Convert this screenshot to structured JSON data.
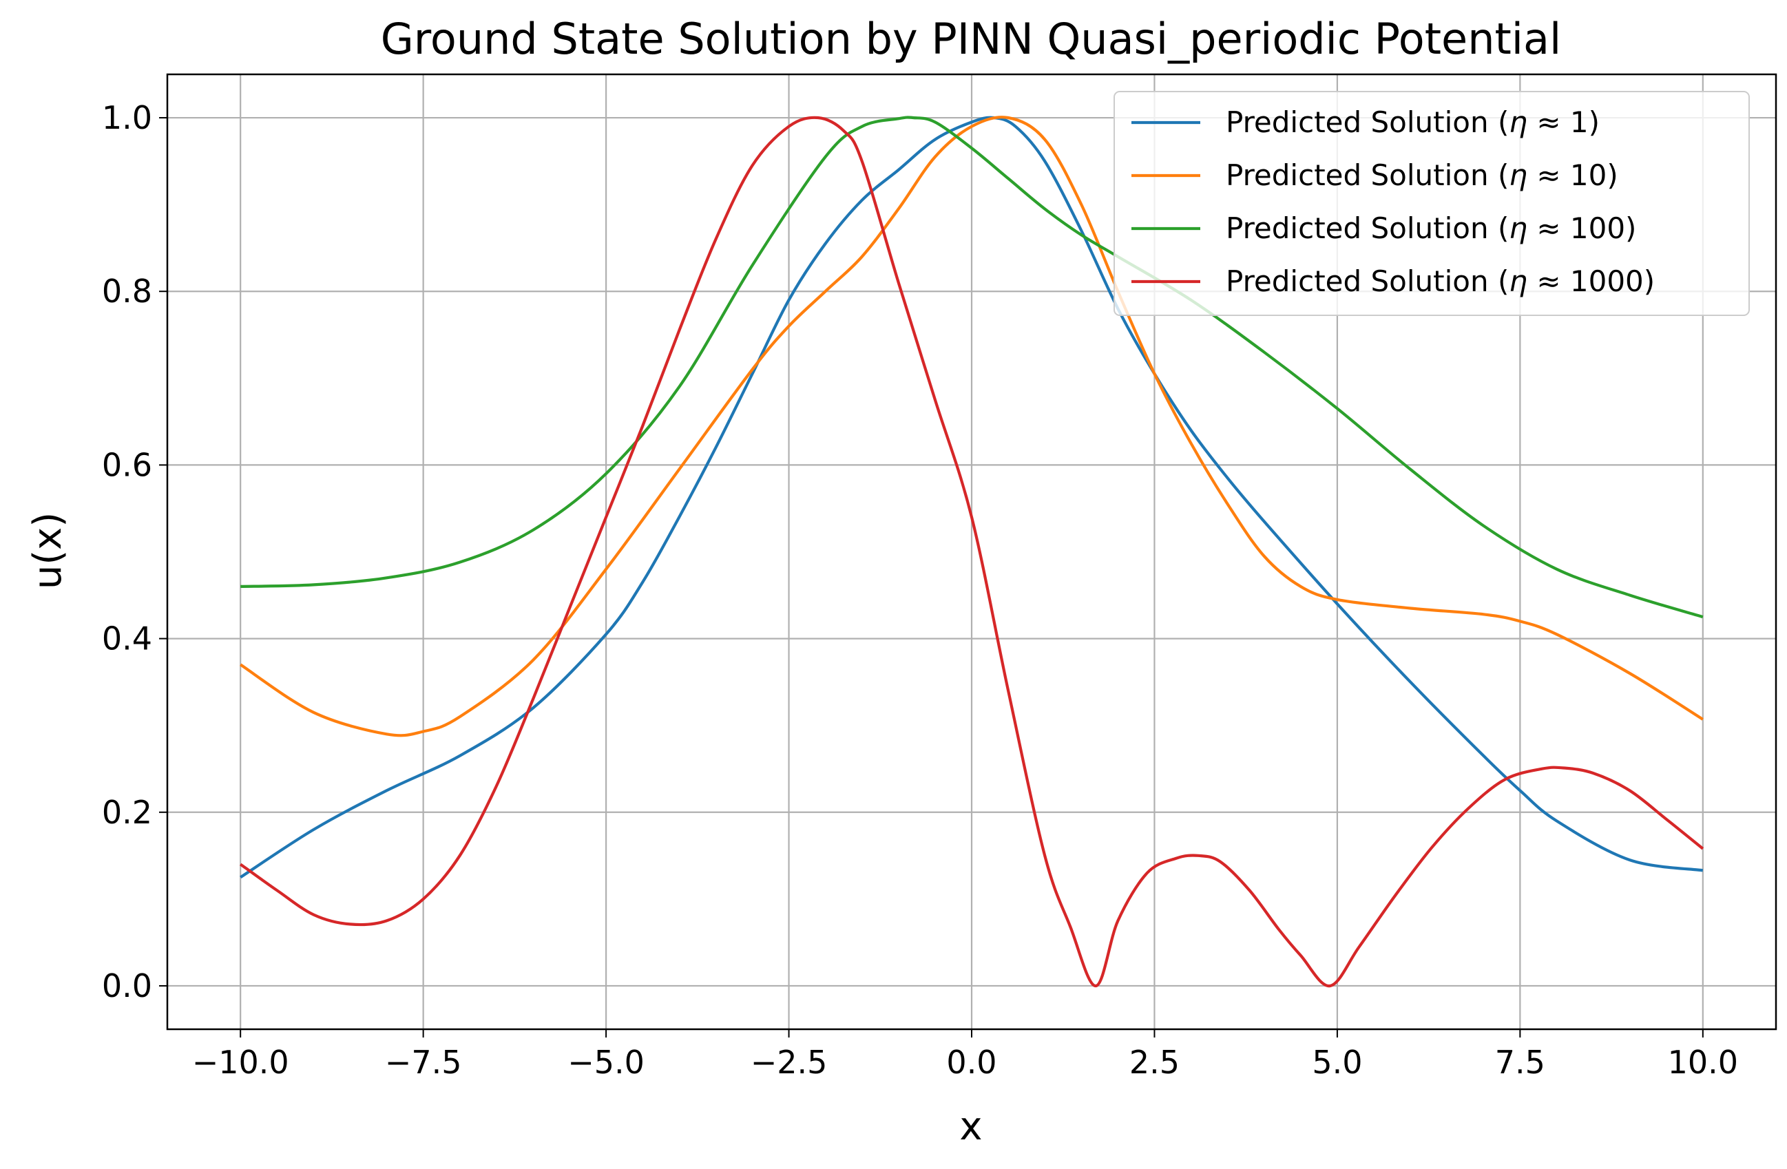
{
  "chart_data": {
    "type": "line",
    "title": "Ground State Solution by PINN Quasi_periodic Potential",
    "xlabel": "x",
    "ylabel": "u(x)",
    "xlim": [
      -11,
      11
    ],
    "ylim": [
      -0.05,
      1.05
    ],
    "xticks": [
      -10.0,
      -7.5,
      -5.0,
      -2.5,
      0.0,
      2.5,
      5.0,
      7.5,
      10.0
    ],
    "xtick_labels": [
      "−10.0",
      "−7.5",
      "−5.0",
      "−2.5",
      "0.0",
      "2.5",
      "5.0",
      "7.5",
      "10.0"
    ],
    "yticks": [
      0.0,
      0.2,
      0.4,
      0.6,
      0.8,
      1.0
    ],
    "ytick_labels": [
      "0.0",
      "0.2",
      "0.4",
      "0.6",
      "0.8",
      "1.0"
    ],
    "grid": true,
    "legend_position": "top-right",
    "series": [
      {
        "name_prefix": "Predicted Solution (",
        "name_symbol": "η",
        "name_suffix": " ≈ 1)",
        "color": "#1f77b4",
        "x": [
          -10,
          -9,
          -8,
          -7,
          -6,
          -5,
          -4.5,
          -4,
          -3.5,
          -3,
          -2.5,
          -2,
          -1.5,
          -1,
          -0.5,
          0,
          0.3,
          0.6,
          1,
          1.5,
          2,
          2.5,
          3,
          3.5,
          4,
          5,
          6,
          7,
          7.5,
          8,
          9,
          10
        ],
        "y": [
          0.125,
          0.18,
          0.225,
          0.265,
          0.32,
          0.405,
          0.465,
          0.54,
          0.62,
          0.705,
          0.79,
          0.855,
          0.905,
          0.94,
          0.975,
          0.995,
          1.0,
          0.99,
          0.95,
          0.87,
          0.78,
          0.705,
          0.64,
          0.585,
          0.535,
          0.44,
          0.35,
          0.265,
          0.225,
          0.19,
          0.145,
          0.133
        ]
      },
      {
        "name_prefix": "Predicted Solution (",
        "name_symbol": "η",
        "name_suffix": " ≈ 10)",
        "color": "#ff7f0e",
        "x": [
          -10,
          -9,
          -8,
          -7.5,
          -7,
          -6,
          -5,
          -4,
          -3,
          -2.5,
          -2,
          -1.5,
          -1,
          -0.5,
          0,
          0.5,
          1,
          1.5,
          2,
          2.5,
          3,
          3.5,
          4,
          4.5,
          5,
          6,
          7,
          7.5,
          8,
          9,
          10
        ],
        "y": [
          0.37,
          0.315,
          0.29,
          0.293,
          0.31,
          0.375,
          0.48,
          0.595,
          0.71,
          0.76,
          0.8,
          0.84,
          0.895,
          0.955,
          0.99,
          1.0,
          0.975,
          0.9,
          0.8,
          0.705,
          0.625,
          0.555,
          0.495,
          0.46,
          0.445,
          0.435,
          0.428,
          0.42,
          0.405,
          0.36,
          0.307
        ]
      },
      {
        "name_prefix": "Predicted Solution (",
        "name_symbol": "η",
        "name_suffix": " ≈ 100)",
        "color": "#2ca02c",
        "x": [
          -10,
          -9,
          -8,
          -7,
          -6,
          -5,
          -4,
          -3,
          -2,
          -1.5,
          -1,
          -0.8,
          -0.5,
          0,
          0.5,
          1,
          1.5,
          2,
          3,
          4,
          5,
          6,
          7,
          8,
          9,
          10
        ],
        "y": [
          0.46,
          0.462,
          0.47,
          0.488,
          0.525,
          0.59,
          0.69,
          0.83,
          0.955,
          0.99,
          0.999,
          1.0,
          0.995,
          0.965,
          0.93,
          0.895,
          0.865,
          0.84,
          0.79,
          0.73,
          0.665,
          0.595,
          0.53,
          0.48,
          0.45,
          0.425
        ]
      },
      {
        "name_prefix": "Predicted Solution (",
        "name_symbol": "η",
        "name_suffix": " ≈ 1000)",
        "color": "#d62728",
        "x": [
          -10,
          -9.5,
          -9,
          -8.5,
          -8,
          -7.5,
          -7,
          -6.5,
          -6,
          -5.5,
          -5,
          -4.5,
          -4,
          -3.5,
          -3,
          -2.5,
          -2.1,
          -1.75,
          -1.5,
          -1,
          -0.5,
          0,
          0.5,
          1,
          1.35,
          1.7,
          2.0,
          2.4,
          2.8,
          3.1,
          3.4,
          3.8,
          4.2,
          4.5,
          4.9,
          5.3,
          5.8,
          6.3,
          6.8,
          7.3,
          7.8,
          8.1,
          8.5,
          9.0,
          9.5,
          10
        ],
        "y": [
          0.14,
          0.11,
          0.082,
          0.071,
          0.075,
          0.1,
          0.15,
          0.23,
          0.33,
          0.435,
          0.54,
          0.645,
          0.755,
          0.86,
          0.945,
          0.99,
          1.0,
          0.985,
          0.95,
          0.81,
          0.675,
          0.54,
          0.34,
          0.15,
          0.068,
          0.0,
          0.075,
          0.13,
          0.147,
          0.15,
          0.143,
          0.11,
          0.065,
          0.035,
          0.0,
          0.045,
          0.105,
          0.16,
          0.205,
          0.238,
          0.25,
          0.251,
          0.245,
          0.225,
          0.192,
          0.158
        ]
      }
    ]
  }
}
